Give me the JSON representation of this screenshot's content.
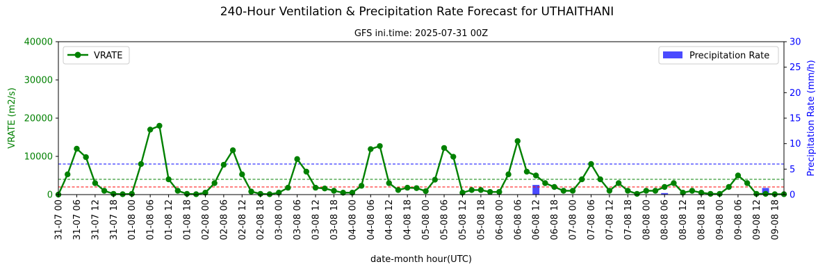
{
  "chart_data": {
    "type": "line+bar",
    "title": "240-Hour Ventilation & Precipitation Rate Forecast for UTHAITHANI",
    "subtitle": "GFS ini.time: 2025-07-31 00Z",
    "xlabel": "date-month hour(UTC)",
    "ylabel_left": "VRATE (m2/s)",
    "ylabel_right": "Precipitation Rate (mm/h)",
    "ylim_left": [
      0,
      40000
    ],
    "ylim_right": [
      0,
      30
    ],
    "yticks_left": [
      "0",
      "10000",
      "20000",
      "30000",
      "40000"
    ],
    "yticks_right": [
      "0",
      "5",
      "10",
      "15",
      "20",
      "25",
      "30"
    ],
    "x_tick_labels": [
      "31-07 00",
      "31-07 06",
      "31-07 12",
      "31-07 18",
      "01-08 00",
      "01-08 06",
      "01-08 12",
      "01-08 18",
      "02-08 00",
      "02-08 06",
      "02-08 12",
      "02-08 18",
      "03-08 00",
      "03-08 06",
      "03-08 12",
      "03-08 18",
      "04-08 00",
      "04-08 06",
      "04-08 12",
      "04-08 18",
      "05-08 00",
      "05-08 06",
      "05-08 12",
      "05-08 18",
      "06-08 00",
      "06-08 06",
      "06-08 12",
      "06-08 18",
      "07-08 00",
      "07-08 06",
      "07-08 12",
      "07-08 18",
      "08-08 00",
      "08-08 06",
      "08-08 12",
      "08-08 18",
      "09-08 00",
      "09-08 06",
      "09-08 12",
      "09-08 18"
    ],
    "x_step_hours": 3,
    "reference_lines": [
      {
        "value": 8000,
        "color": "#0000ff"
      },
      {
        "value": 4000,
        "color": "#008000"
      },
      {
        "value": 2000,
        "color": "#ff0000"
      }
    ],
    "series": [
      {
        "name": "VRATE",
        "type": "line",
        "color": "#008000",
        "values": [
          0,
          5300,
          12000,
          9800,
          3000,
          1000,
          200,
          100,
          200,
          8000,
          17000,
          18000,
          4000,
          1000,
          200,
          100,
          500,
          3000,
          7800,
          11600,
          5300,
          800,
          200,
          100,
          500,
          1800,
          9300,
          6000,
          1800,
          1600,
          1000,
          500,
          500,
          2300,
          11900,
          12700,
          3000,
          1200,
          1800,
          1700,
          900,
          3900,
          12200,
          9900,
          500,
          1200,
          1200,
          700,
          700,
          5300,
          14000,
          6000,
          5000,
          3000,
          2000,
          1000,
          1000,
          4000,
          8000,
          4000,
          1000,
          3000,
          1000,
          200,
          1000,
          1000,
          2000,
          3000,
          500,
          1000,
          500,
          200,
          200,
          2000,
          5000,
          3000,
          200,
          200,
          100,
          100
        ]
      },
      {
        "name": "Precipitation Rate",
        "type": "bar",
        "color": "#4a4aff",
        "values": [
          0,
          0,
          0,
          0,
          0,
          0,
          0,
          0,
          0,
          0,
          0,
          0,
          0,
          0,
          0,
          0,
          0,
          0,
          0,
          0,
          0,
          0,
          0,
          0,
          0,
          0,
          0,
          0,
          0,
          0,
          0,
          0,
          0,
          0,
          0,
          0,
          0,
          0,
          0,
          0,
          0,
          0,
          0,
          0,
          0,
          0,
          0,
          0,
          0,
          0,
          0,
          0,
          1.9,
          0,
          0,
          0,
          0,
          0,
          0,
          0,
          0,
          0,
          0,
          0,
          0,
          0,
          0.3,
          0,
          0,
          0,
          0,
          0,
          0,
          0,
          0,
          0,
          0,
          1.3,
          0,
          0
        ]
      }
    ],
    "legend": [
      {
        "label": "VRATE",
        "placement": "top-left"
      },
      {
        "label": "Precipitation Rate",
        "placement": "top-right"
      }
    ]
  }
}
